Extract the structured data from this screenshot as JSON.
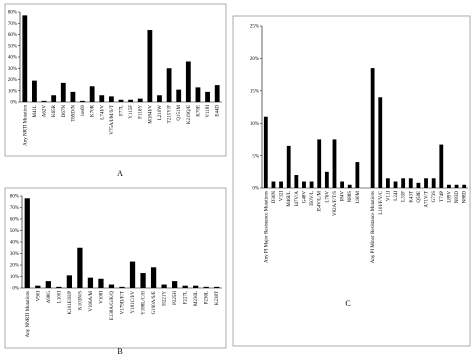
{
  "chart_data": [
    {
      "type": "bar",
      "panel_label": "A",
      "color": "#000000",
      "categories": [
        "Any NRTI Mutation",
        "M41L",
        "A62V",
        "K65R",
        "D67N",
        "T69D/N",
        "ins69",
        "K70R",
        "L74I/V",
        "V75A/I/M/S/T",
        "F77L",
        "Y115F",
        "F116Y",
        "M184I/V",
        "L210W",
        "T215Y/F",
        "Q151M",
        "K219Q/E",
        "K70E",
        "V118I",
        "E44D"
      ],
      "values": [
        77,
        19,
        1,
        6,
        17,
        9,
        1,
        14,
        6,
        5,
        2,
        2,
        3,
        64,
        6,
        30,
        11,
        36,
        13,
        9,
        15
      ],
      "ylim": [
        0,
        80
      ],
      "yticks": [
        {
          "value": 0,
          "label": "0%"
        },
        {
          "value": 10,
          "label": "10%"
        },
        {
          "value": 20,
          "label": "20%"
        },
        {
          "value": 30,
          "label": "30%"
        },
        {
          "value": 40,
          "label": "40%"
        },
        {
          "value": 50,
          "label": "50%"
        },
        {
          "value": 60,
          "label": "60%"
        },
        {
          "value": 70,
          "label": "70%"
        },
        {
          "value": 80,
          "label": "80%"
        }
      ]
    },
    {
      "type": "bar",
      "panel_label": "B",
      "color": "#000000",
      "categories": [
        "Any NNRTI Mutations",
        "V90I",
        "A98G",
        "L100I",
        "K101E/H/P",
        "K103N/S",
        "V106A/M",
        "V108I",
        "E138A/G/K/Q",
        "V179D/F/T",
        "Y181C/I/V",
        "Y188L/C/H",
        "G190A/S/E",
        "H221Y",
        "P225H",
        "F227L",
        "M230L",
        "P236L",
        "K238T"
      ],
      "values": [
        78,
        2,
        6,
        1,
        11,
        35,
        9,
        8,
        3,
        1,
        23,
        13,
        18,
        3,
        6,
        2,
        2,
        1,
        1
      ],
      "ylim": [
        0,
        80
      ],
      "yticks": [
        {
          "value": 0,
          "label": "0%"
        },
        {
          "value": 10,
          "label": "10%"
        },
        {
          "value": 20,
          "label": "20%"
        },
        {
          "value": 30,
          "label": "30%"
        },
        {
          "value": 40,
          "label": "40%"
        },
        {
          "value": 50,
          "label": "50%"
        },
        {
          "value": 60,
          "label": "60%"
        },
        {
          "value": 70,
          "label": "70%"
        },
        {
          "value": 80,
          "label": "80%"
        }
      ]
    },
    {
      "type": "bar",
      "panel_label": "C",
      "color": "#000000",
      "categories": [
        "Any PI Major Resistance Mutations",
        "D30N",
        "V32I",
        "M46I/L",
        "I47V/A",
        "G48V",
        "I50V/L",
        "I54V/L/M",
        "L76V",
        "V82A/F/T/S",
        "I84V",
        "N88S",
        "L90M",
        null,
        "Any PI Minor Resistance Mutations",
        "L10I/F/V/C",
        "V11I",
        "L24I",
        "L33F",
        "K43T",
        "Q58E",
        "A71V/T",
        "G73S",
        "T74P",
        "L89V",
        "N83D",
        "N88D"
      ],
      "values": [
        11,
        1,
        1,
        6.5,
        2,
        1,
        1,
        7.5,
        2.5,
        7.5,
        1,
        0.5,
        4,
        null,
        18.5,
        14,
        1.5,
        1,
        1.5,
        1.5,
        0.8,
        1.5,
        1.5,
        6.7,
        0.5,
        0.5,
        0.5
      ],
      "ylim": [
        0,
        25
      ],
      "yticks": [
        {
          "value": 0,
          "label": "0%"
        },
        {
          "value": 5,
          "label": "5%"
        },
        {
          "value": 10,
          "label": "10%"
        },
        {
          "value": 15,
          "label": "15%"
        },
        {
          "value": 20,
          "label": "20%"
        },
        {
          "value": 25,
          "label": "25%"
        }
      ]
    }
  ]
}
